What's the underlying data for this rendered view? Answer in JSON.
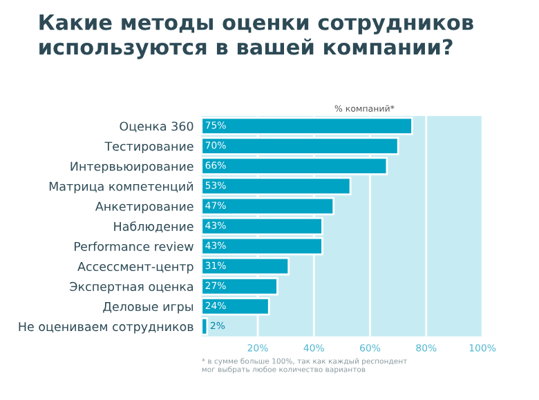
{
  "chart_data": {
    "type": "bar",
    "orientation": "horizontal",
    "title": "Какие методы оценки сотрудников\nиспользуются в вашей компании?",
    "xlabel": "% компаний*",
    "categories": [
      "Оценка 360",
      "Тестирование",
      "Интервьюирование",
      "Матрица компетенций",
      "Анкетирование",
      "Наблюдение",
      "Performance review",
      "Ассессмент-центр",
      "Экспертная оценка",
      "Деловые игры",
      "Не оцениваем сотрудников"
    ],
    "values": [
      75,
      70,
      66,
      53,
      47,
      43,
      43,
      31,
      27,
      24,
      2
    ],
    "value_labels": [
      "75%",
      "70%",
      "66%",
      "53%",
      "47%",
      "43%",
      "43%",
      "31%",
      "27%",
      "24%",
      "2%"
    ],
    "color": "#00a3c4",
    "xlim": [
      0,
      100
    ],
    "xticks": [
      {
        "value": 20,
        "label": "20%"
      },
      {
        "value": 40,
        "label": "40%"
      },
      {
        "value": 60,
        "label": "60%"
      },
      {
        "value": 80,
        "label": "80%"
      },
      {
        "value": 100,
        "label": "100%"
      }
    ],
    "grid": "x",
    "annotations": [
      "* в сумме больше 100%, так как каждый респондент\nмог выбрать любое количество вариантов"
    ]
  }
}
